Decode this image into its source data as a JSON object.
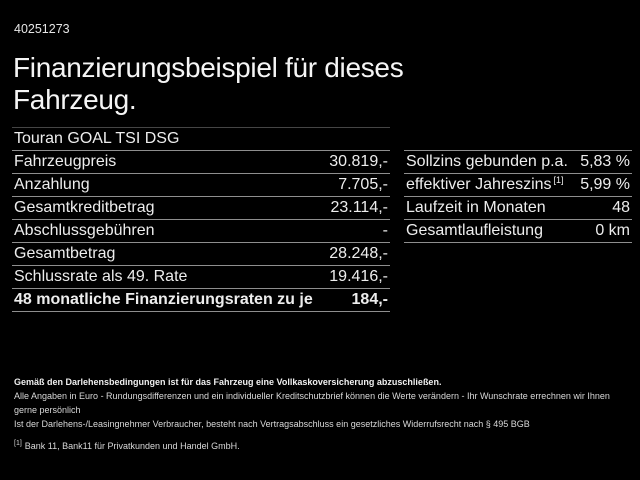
{
  "header": {
    "doc_number": "40251273",
    "title_lines": [
      "Finanzierungsbeispiel für dieses",
      "Fahrzeug."
    ]
  },
  "vehicle": {
    "model": "Touran GOAL TSI DSG"
  },
  "left_table": {
    "rows": [
      {
        "label": "Fahrzeugpreis",
        "value": "30.819,-"
      },
      {
        "label": "Anzahlung",
        "value": "7.705,-"
      },
      {
        "label": "Gesamtkreditbetrag",
        "value": "23.114,-"
      },
      {
        "label": "Abschlussgebühren",
        "value": "-"
      },
      {
        "label": "Gesamtbetrag",
        "value": "28.248,-"
      },
      {
        "label": "Schlussrate als 49. Rate",
        "value": "19.416,-"
      },
      {
        "label": "48 monatliche Finanzierungsraten zu je",
        "value": "184,-",
        "bold": true
      }
    ]
  },
  "right_table": {
    "rows": [
      {
        "label": "Sollzins gebunden p.a.",
        "value": "5,83 %"
      },
      {
        "label": "effektiver Jahreszins",
        "sup": "[1]",
        "value": "5,99 %"
      },
      {
        "label": "Laufzeit in Monaten",
        "value": "48"
      },
      {
        "label": "Gesamtlaufleistung",
        "value": "0 km"
      }
    ]
  },
  "footer": {
    "insurance_note": "Gemäß den Darlehensbedingungen ist für das Fahrzeug eine Vollkaskoversicherung abzuschließen.",
    "disclaimer_line1": "Alle Angaben in Euro - Rundungsdifferenzen und ein individueller Kreditschutzbrief können die Werte verändern - Ihr Wunschrate errechnen wir Ihnen gerne persönlich",
    "disclaimer_line2": "Ist der Darlehens-/Leasingnehmer Verbraucher, besteht nach Vertragsabschluss ein gesetzliches Widerrufsrecht nach § 495 BGB",
    "footnote_marker": "[1]",
    "footnote_text": "Bank 11, Bank11 für Privatkunden und Handel GmbH."
  },
  "colors": {
    "background": "#000000",
    "text": "#f0f0f0",
    "separator": "#8e8e8e",
    "faint_separator": "#454545"
  }
}
